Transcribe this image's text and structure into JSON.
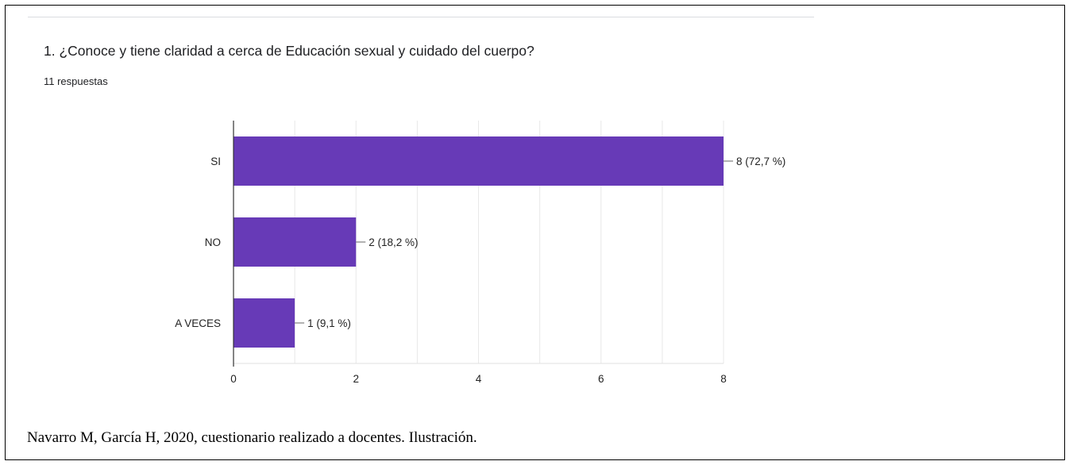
{
  "question": {
    "title": "1. ¿Conoce y tiene claridad a cerca de Educación sexual y cuidado del cuerpo?",
    "responses": "11 respuestas"
  },
  "chart_data": {
    "type": "bar",
    "orientation": "horizontal",
    "categories": [
      "SI",
      "NO",
      "A VECES"
    ],
    "values": [
      8,
      2,
      1
    ],
    "data_labels": [
      "8 (72,7 %)",
      "2 (18,2 %)",
      "1 (9,1 %)"
    ],
    "xlim": [
      0,
      8
    ],
    "xticks": [
      "0",
      "2",
      "4",
      "6",
      "8"
    ],
    "grid": true,
    "bar_color": "#673ab7"
  },
  "caption": "Navarro M, García H, 2020, cuestionario realizado a docentes. Ilustración."
}
